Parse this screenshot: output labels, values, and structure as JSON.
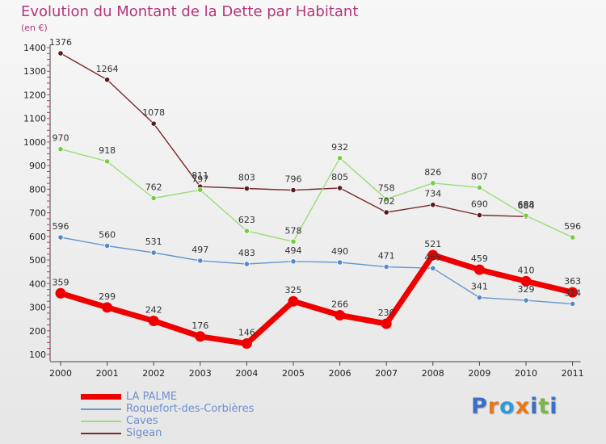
{
  "header": {
    "title": "Evolution du Montant de la Dette par Habitant",
    "unit": "(en €)"
  },
  "logo": {
    "text": "Proxiti",
    "letter_colors": [
      "#3a6fc4",
      "#e8761a",
      "#2e9bd6",
      "#e8761a",
      "#3a6fc4",
      "#7ab648",
      "#3a6fc4"
    ]
  },
  "chart_data": {
    "type": "line",
    "title": "Evolution du Montant de la Dette par Habitant",
    "subtitle": "(en €)",
    "xlabel": "",
    "ylabel": "",
    "x": [
      "2000",
      "2001",
      "2002",
      "2003",
      "2004",
      "2005",
      "2006",
      "2007",
      "2008",
      "2009",
      "2010",
      "2011"
    ],
    "yticks": [
      100,
      200,
      300,
      400,
      500,
      600,
      700,
      800,
      900,
      1000,
      1100,
      1200,
      1300,
      1400
    ],
    "ylim": [
      100,
      1400
    ],
    "grid": false,
    "legend_position": "bottom-left",
    "series": [
      {
        "name": "Sigean",
        "color": "#7a2a2a",
        "marker_color": "#5a1a1a",
        "values": [
          1376,
          1264,
          1078,
          811,
          803,
          796,
          805,
          702,
          734,
          690,
          684,
          null
        ]
      },
      {
        "name": "Caves",
        "color": "#99dd77",
        "marker_color": "#77cc44",
        "values": [
          970,
          918,
          762,
          797,
          623,
          578,
          932,
          758,
          826,
          807,
          688,
          596
        ]
      },
      {
        "name": "Roquefort-des-Corbières",
        "color": "#6699cc",
        "marker_color": "#5588cc",
        "values": [
          596,
          560,
          531,
          497,
          483,
          494,
          490,
          471,
          465,
          341,
          329,
          314
        ]
      },
      {
        "name": "LA PALME",
        "color": "#ee0000",
        "marker_color": "#ee0000",
        "values": [
          359,
          299,
          242,
          176,
          146,
          325,
          266,
          230,
          521,
          459,
          410,
          363
        ]
      }
    ],
    "point_labels": [
      {
        "series": "Sigean",
        "labels": [
          "1376",
          "1264",
          "1078",
          "811",
          "803",
          "796",
          "805",
          "702",
          "734",
          "690",
          "684",
          ""
        ]
      },
      {
        "series": "Caves",
        "labels": [
          "970",
          "918",
          "762",
          "797",
          "623",
          "578",
          "932",
          "758",
          "826",
          "807",
          "688",
          "596"
        ]
      },
      {
        "series": "Roquefort-des-Corbières",
        "labels": [
          "596",
          "560",
          "531",
          "497",
          "483",
          "494",
          "490",
          "471",
          "465",
          "341",
          "329",
          "314"
        ]
      },
      {
        "series": "LA PALME",
        "labels": [
          "359",
          "299",
          "242",
          "176",
          "146",
          "325",
          "266",
          "230",
          "521",
          "459",
          "410",
          "363"
        ]
      }
    ],
    "legend_order": [
      "LA PALME",
      "Roquefort-des-Corbières",
      "Caves",
      "Sigean"
    ]
  }
}
